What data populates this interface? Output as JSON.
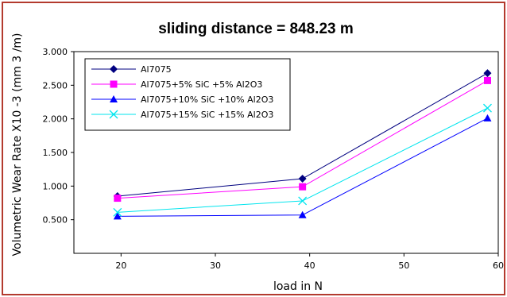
{
  "chart_data": {
    "type": "line",
    "title": "sliding distance = 848.23 m",
    "xlabel": "load in N",
    "ylabel": "Volumetric Wear Rate X10 -3 (mm 3 /m)",
    "xlim": [
      15,
      60
    ],
    "ylim": [
      0,
      3.0
    ],
    "x_ticks": [
      20,
      30,
      40,
      50,
      60
    ],
    "y_ticks": [
      0.5,
      1.0,
      1.5,
      2.0,
      2.5,
      3.0
    ],
    "x_tick_labels": [
      "20",
      "30",
      "40",
      "50",
      "60"
    ],
    "y_tick_labels": [
      "0.500",
      "1.000",
      "1.500",
      "2.000",
      "2.500",
      "3.000"
    ],
    "grid": false,
    "legend_position": "top-left",
    "x": [
      19.62,
      39.24,
      58.86
    ],
    "series": [
      {
        "name": "Al7075",
        "values": [
          0.85,
          1.11,
          2.68
        ],
        "color": "#000080",
        "marker": "diamond"
      },
      {
        "name": "Al7075+5% SiC +5% Al2O3",
        "values": [
          0.82,
          0.99,
          2.57
        ],
        "color": "#ff00ff",
        "marker": "square"
      },
      {
        "name": "Al7075+10% SiC +10% Al2O3",
        "values": [
          0.55,
          0.57,
          2.01
        ],
        "color": "#0000ff",
        "marker": "triangle"
      },
      {
        "name": "Al7075+15% SiC +15% Al2O3",
        "values": [
          0.61,
          0.78,
          2.16
        ],
        "color": "#00e5ee",
        "marker": "x"
      }
    ]
  }
}
